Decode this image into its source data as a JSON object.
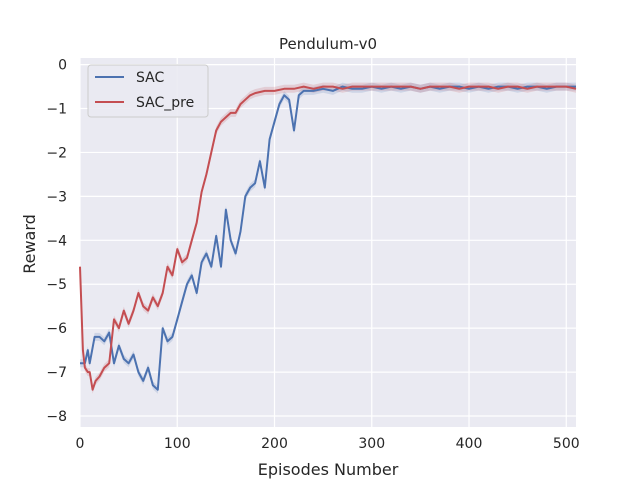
{
  "chart_data": {
    "type": "line",
    "title": "Pendulum-v0",
    "xlabel": "Episodes Number",
    "ylabel": "Reward",
    "xlim": [
      0,
      510
    ],
    "ylim": [
      -8.25,
      0.15
    ],
    "xticks": [
      0,
      100,
      200,
      300,
      400,
      500
    ],
    "yticks": [
      0,
      -1,
      -2,
      -3,
      -4,
      -5,
      -6,
      -7,
      -8
    ],
    "grid": true,
    "legend_position": "top-left",
    "background": "#eaeaf2",
    "series": [
      {
        "name": "SAC",
        "color": "#4c72b0",
        "x": [
          0,
          5,
          8,
          10,
          15,
          20,
          25,
          30,
          35,
          40,
          45,
          50,
          55,
          60,
          65,
          70,
          75,
          80,
          85,
          90,
          95,
          100,
          105,
          110,
          115,
          120,
          125,
          130,
          135,
          140,
          145,
          150,
          155,
          160,
          165,
          170,
          175,
          180,
          185,
          190,
          195,
          200,
          205,
          210,
          215,
          220,
          225,
          230,
          240,
          250,
          260,
          270,
          280,
          290,
          300,
          310,
          320,
          330,
          340,
          350,
          360,
          370,
          380,
          390,
          400,
          410,
          420,
          430,
          440,
          450,
          460,
          470,
          480,
          490,
          500,
          510
        ],
        "y": [
          -6.8,
          -6.8,
          -6.5,
          -6.8,
          -6.2,
          -6.2,
          -6.3,
          -6.1,
          -6.8,
          -6.4,
          -6.7,
          -6.8,
          -6.6,
          -7.0,
          -7.2,
          -6.9,
          -7.3,
          -7.4,
          -6.0,
          -6.3,
          -6.2,
          -5.8,
          -5.4,
          -5.0,
          -4.8,
          -5.2,
          -4.5,
          -4.3,
          -4.6,
          -3.9,
          -4.6,
          -3.3,
          -4.0,
          -4.3,
          -3.8,
          -3.0,
          -2.8,
          -2.7,
          -2.2,
          -2.8,
          -1.7,
          -1.3,
          -0.9,
          -0.7,
          -0.8,
          -1.5,
          -0.7,
          -0.6,
          -0.6,
          -0.55,
          -0.6,
          -0.5,
          -0.55,
          -0.55,
          -0.5,
          -0.55,
          -0.5,
          -0.55,
          -0.5,
          -0.55,
          -0.5,
          -0.55,
          -0.5,
          -0.5,
          -0.55,
          -0.5,
          -0.55,
          -0.5,
          -0.5,
          -0.55,
          -0.5,
          -0.5,
          -0.55,
          -0.5,
          -0.5,
          -0.5
        ]
      },
      {
        "name": "SAC_pre",
        "color": "#c44e52",
        "x": [
          0,
          3,
          5,
          8,
          10,
          13,
          16,
          20,
          25,
          30,
          35,
          40,
          45,
          50,
          55,
          60,
          65,
          70,
          75,
          80,
          85,
          90,
          95,
          100,
          105,
          110,
          115,
          120,
          125,
          130,
          135,
          140,
          145,
          150,
          155,
          160,
          165,
          170,
          175,
          180,
          190,
          200,
          210,
          220,
          230,
          240,
          250,
          260,
          270,
          280,
          290,
          300,
          310,
          320,
          330,
          340,
          350,
          360,
          370,
          380,
          390,
          400,
          410,
          420,
          430,
          440,
          450,
          460,
          470,
          480,
          490,
          500,
          510
        ],
        "y": [
          -4.6,
          -6.5,
          -6.9,
          -7.0,
          -7.0,
          -7.4,
          -7.2,
          -7.1,
          -6.9,
          -6.8,
          -5.8,
          -6.0,
          -5.6,
          -5.9,
          -5.6,
          -5.2,
          -5.5,
          -5.6,
          -5.3,
          -5.5,
          -5.2,
          -4.6,
          -4.8,
          -4.2,
          -4.5,
          -4.4,
          -4.0,
          -3.6,
          -2.9,
          -2.5,
          -2.0,
          -1.5,
          -1.3,
          -1.2,
          -1.1,
          -1.1,
          -0.9,
          -0.8,
          -0.7,
          -0.65,
          -0.6,
          -0.6,
          -0.55,
          -0.55,
          -0.5,
          -0.55,
          -0.5,
          -0.5,
          -0.55,
          -0.5,
          -0.5,
          -0.5,
          -0.5,
          -0.5,
          -0.5,
          -0.5,
          -0.55,
          -0.5,
          -0.5,
          -0.5,
          -0.55,
          -0.5,
          -0.5,
          -0.5,
          -0.55,
          -0.5,
          -0.5,
          -0.55,
          -0.5,
          -0.5,
          -0.5,
          -0.5,
          -0.55
        ]
      }
    ]
  }
}
